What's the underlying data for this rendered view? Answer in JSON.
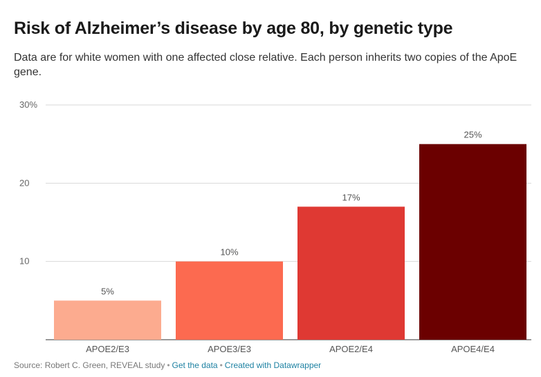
{
  "header": {
    "title": "Risk of Alzheimer’s disease by age 80, by genetic type",
    "subtitle": "Data are for white women with one affected close relative. Each person inherits two copies of the ApoE gene."
  },
  "chart_data": {
    "type": "bar",
    "categories": [
      "APOE2/E3",
      "APOE3/E3",
      "APOE2/E4",
      "APOE4/E4"
    ],
    "values": [
      5,
      10,
      17,
      25
    ],
    "value_labels": [
      "5%",
      "10%",
      "17%",
      "25%"
    ],
    "colors": [
      "#fcab8f",
      "#fc6a50",
      "#df3933",
      "#6b0000"
    ],
    "ylim": [
      0,
      30
    ],
    "yticks": [
      10,
      20,
      30
    ],
    "ytick_labels": [
      "10",
      "20",
      "30%"
    ],
    "grid": true,
    "title": "Risk of Alzheimer’s disease by age 80, by genetic type",
    "xlabel": "",
    "ylabel": ""
  },
  "footer": {
    "source": "Source: Robert C. Green, REVEAL study",
    "get_data": "Get the data",
    "credit": "Created with Datawrapper"
  }
}
